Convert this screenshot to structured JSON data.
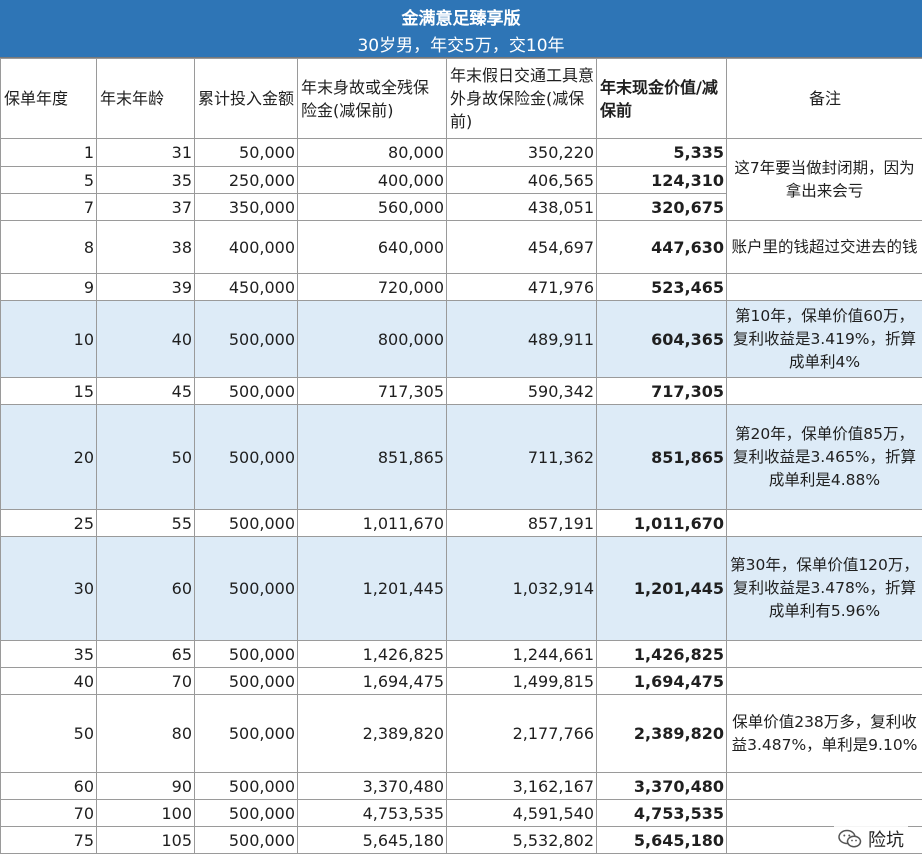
{
  "title": "金满意足臻享版",
  "subtitle": "30岁男，年交5万，交10年",
  "columns": [
    "保单年度",
    "年末年龄",
    "累计投入金额",
    "年末身故或全残保险金(减保前)",
    "年末假日交通工具意外身故保险金(减保前)",
    "年末现金价值/减保前",
    "备注"
  ],
  "rows": [
    {
      "year": "1",
      "age": "31",
      "paid": "50,000",
      "death": "80,000",
      "accident": "350,220",
      "cash": "5,335"
    },
    {
      "year": "5",
      "age": "35",
      "paid": "250,000",
      "death": "400,000",
      "accident": "406,565",
      "cash": "124,310"
    },
    {
      "year": "7",
      "age": "37",
      "paid": "350,000",
      "death": "560,000",
      "accident": "438,051",
      "cash": "320,675"
    },
    {
      "year": "8",
      "age": "38",
      "paid": "400,000",
      "death": "640,000",
      "accident": "454,697",
      "cash": "447,630"
    },
    {
      "year": "9",
      "age": "39",
      "paid": "450,000",
      "death": "720,000",
      "accident": "471,976",
      "cash": "523,465"
    },
    {
      "year": "10",
      "age": "40",
      "paid": "500,000",
      "death": "800,000",
      "accident": "489,911",
      "cash": "604,365"
    },
    {
      "year": "15",
      "age": "45",
      "paid": "500,000",
      "death": "717,305",
      "accident": "590,342",
      "cash": "717,305"
    },
    {
      "year": "20",
      "age": "50",
      "paid": "500,000",
      "death": "851,865",
      "accident": "711,362",
      "cash": "851,865"
    },
    {
      "year": "25",
      "age": "55",
      "paid": "500,000",
      "death": "1,011,670",
      "accident": "857,191",
      "cash": "1,011,670"
    },
    {
      "year": "30",
      "age": "60",
      "paid": "500,000",
      "death": "1,201,445",
      "accident": "1,032,914",
      "cash": "1,201,445"
    },
    {
      "year": "35",
      "age": "65",
      "paid": "500,000",
      "death": "1,426,825",
      "accident": "1,244,661",
      "cash": "1,426,825"
    },
    {
      "year": "40",
      "age": "70",
      "paid": "500,000",
      "death": "1,694,475",
      "accident": "1,499,815",
      "cash": "1,694,475"
    },
    {
      "year": "50",
      "age": "80",
      "paid": "500,000",
      "death": "2,389,820",
      "accident": "2,177,766",
      "cash": "2,389,820"
    },
    {
      "year": "60",
      "age": "90",
      "paid": "500,000",
      "death": "3,370,480",
      "accident": "3,162,167",
      "cash": "3,370,480"
    },
    {
      "year": "70",
      "age": "100",
      "paid": "500,000",
      "death": "4,753,535",
      "accident": "4,591,540",
      "cash": "4,753,535"
    },
    {
      "year": "75",
      "age": "105",
      "paid": "500,000",
      "death": "5,645,180",
      "accident": "5,532,802",
      "cash": "5,645,180"
    }
  ],
  "notes": {
    "lockin": "这7年要当做封闭期，因为拿出来会亏",
    "breakeven": "账户里的钱超过交进去的钱",
    "y10": "第10年，保单价值60万，复利收益是3.419%，折算成单利4%",
    "y20": "第20年，保单价值85万，复利收益是3.465%，折算成单利是4.88%",
    "y30": "第30年，保单价值120万，复利收益是3.478%，折算成单利有5.96%",
    "y50": "保单价值238万多，复利收益3.487%，单利是9.10%"
  },
  "highlight_color": "#ddebf7",
  "header_color": "#2e75b6",
  "watermark": {
    "text": "险坑",
    "icon": "wechat-icon"
  }
}
